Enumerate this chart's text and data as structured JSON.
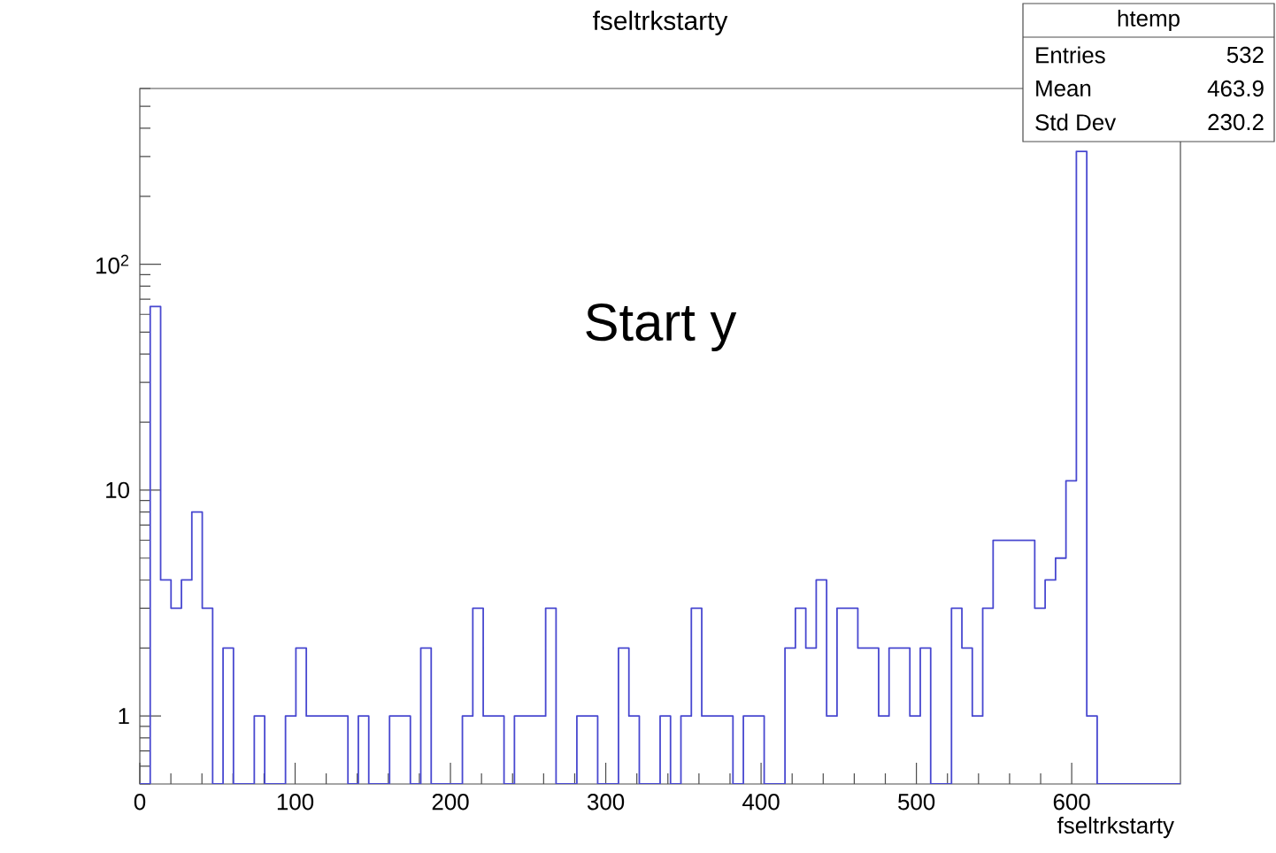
{
  "chart_data": {
    "type": "histogram",
    "title": "fseltrkstarty",
    "xlabel": "fseltrkstarty",
    "annotations": [
      "Start y",
      "htemp",
      "Entries",
      "532",
      "Mean",
      "463.9",
      "Std Dev",
      "230.2"
    ],
    "color": "#4848d0",
    "bins": [
      0,
      6.7,
      13.4,
      20.1,
      26.8,
      33.5,
      40.2,
      46.9,
      53.6,
      60.3,
      67,
      73.7,
      80.4,
      87.1,
      93.8,
      100.5,
      107.2,
      113.9,
      120.6,
      127.3,
      134,
      140.7,
      147.4,
      154.1,
      160.8,
      167.5,
      174.2,
      180.9,
      187.6,
      194.3,
      201,
      207.7,
      214.4,
      221.1,
      227.8,
      234.5,
      241.2,
      247.9,
      254.6,
      261.3,
      268,
      274.7,
      281.4,
      288.1,
      294.8,
      301.5,
      308.2,
      314.9,
      321.6,
      328.3,
      335,
      341.7,
      348.4,
      355.1,
      361.8,
      368.5,
      375.2,
      381.9,
      388.6,
      395.3,
      402,
      408.7,
      415.4,
      422.1,
      428.8,
      435.5,
      442.2,
      448.9,
      455.6,
      462.3,
      469,
      475.7,
      482.4,
      489.1,
      495.8,
      502.5,
      509.2,
      515.9,
      522.6,
      529.3,
      536,
      542.7,
      549.4,
      556.1,
      562.8,
      569.5,
      576.2,
      582.9,
      589.6,
      596.3,
      603,
      609.7,
      616.4,
      623.1,
      629.8,
      636.5,
      643.2,
      649.9,
      656.6,
      663.3,
      670
    ],
    "values": [
      null,
      65,
      4,
      3,
      4,
      8,
      3,
      null,
      2,
      null,
      null,
      1,
      null,
      null,
      1,
      2,
      1,
      1,
      1,
      1,
      null,
      1,
      null,
      null,
      1,
      1,
      null,
      2,
      null,
      null,
      null,
      1,
      3,
      1,
      1,
      null,
      1,
      1,
      1,
      3,
      null,
      null,
      1,
      1,
      null,
      null,
      2,
      1,
      null,
      null,
      1,
      null,
      1,
      3,
      1,
      1,
      1,
      null,
      1,
      1,
      null,
      null,
      2,
      3,
      2,
      4,
      1,
      3,
      3,
      2,
      2,
      1,
      2,
      2,
      1,
      2,
      null,
      null,
      3,
      2,
      1,
      3,
      6,
      6,
      6,
      6,
      3,
      4,
      5,
      11,
      316,
      1,
      null,
      null,
      null,
      null,
      null,
      null,
      null,
      null
    ],
    "xlim": [
      0,
      670
    ],
    "ylim": [
      0.5,
      600
    ],
    "log": "y",
    "xticks": [
      0,
      100,
      200,
      300,
      400,
      500,
      600
    ],
    "yticks": [
      {
        "value": 1,
        "label": "1"
      },
      {
        "value": 10,
        "label": "10"
      },
      {
        "value": 100,
        "label": "10$^{2}$"
      }
    ],
    "grid": false
  }
}
